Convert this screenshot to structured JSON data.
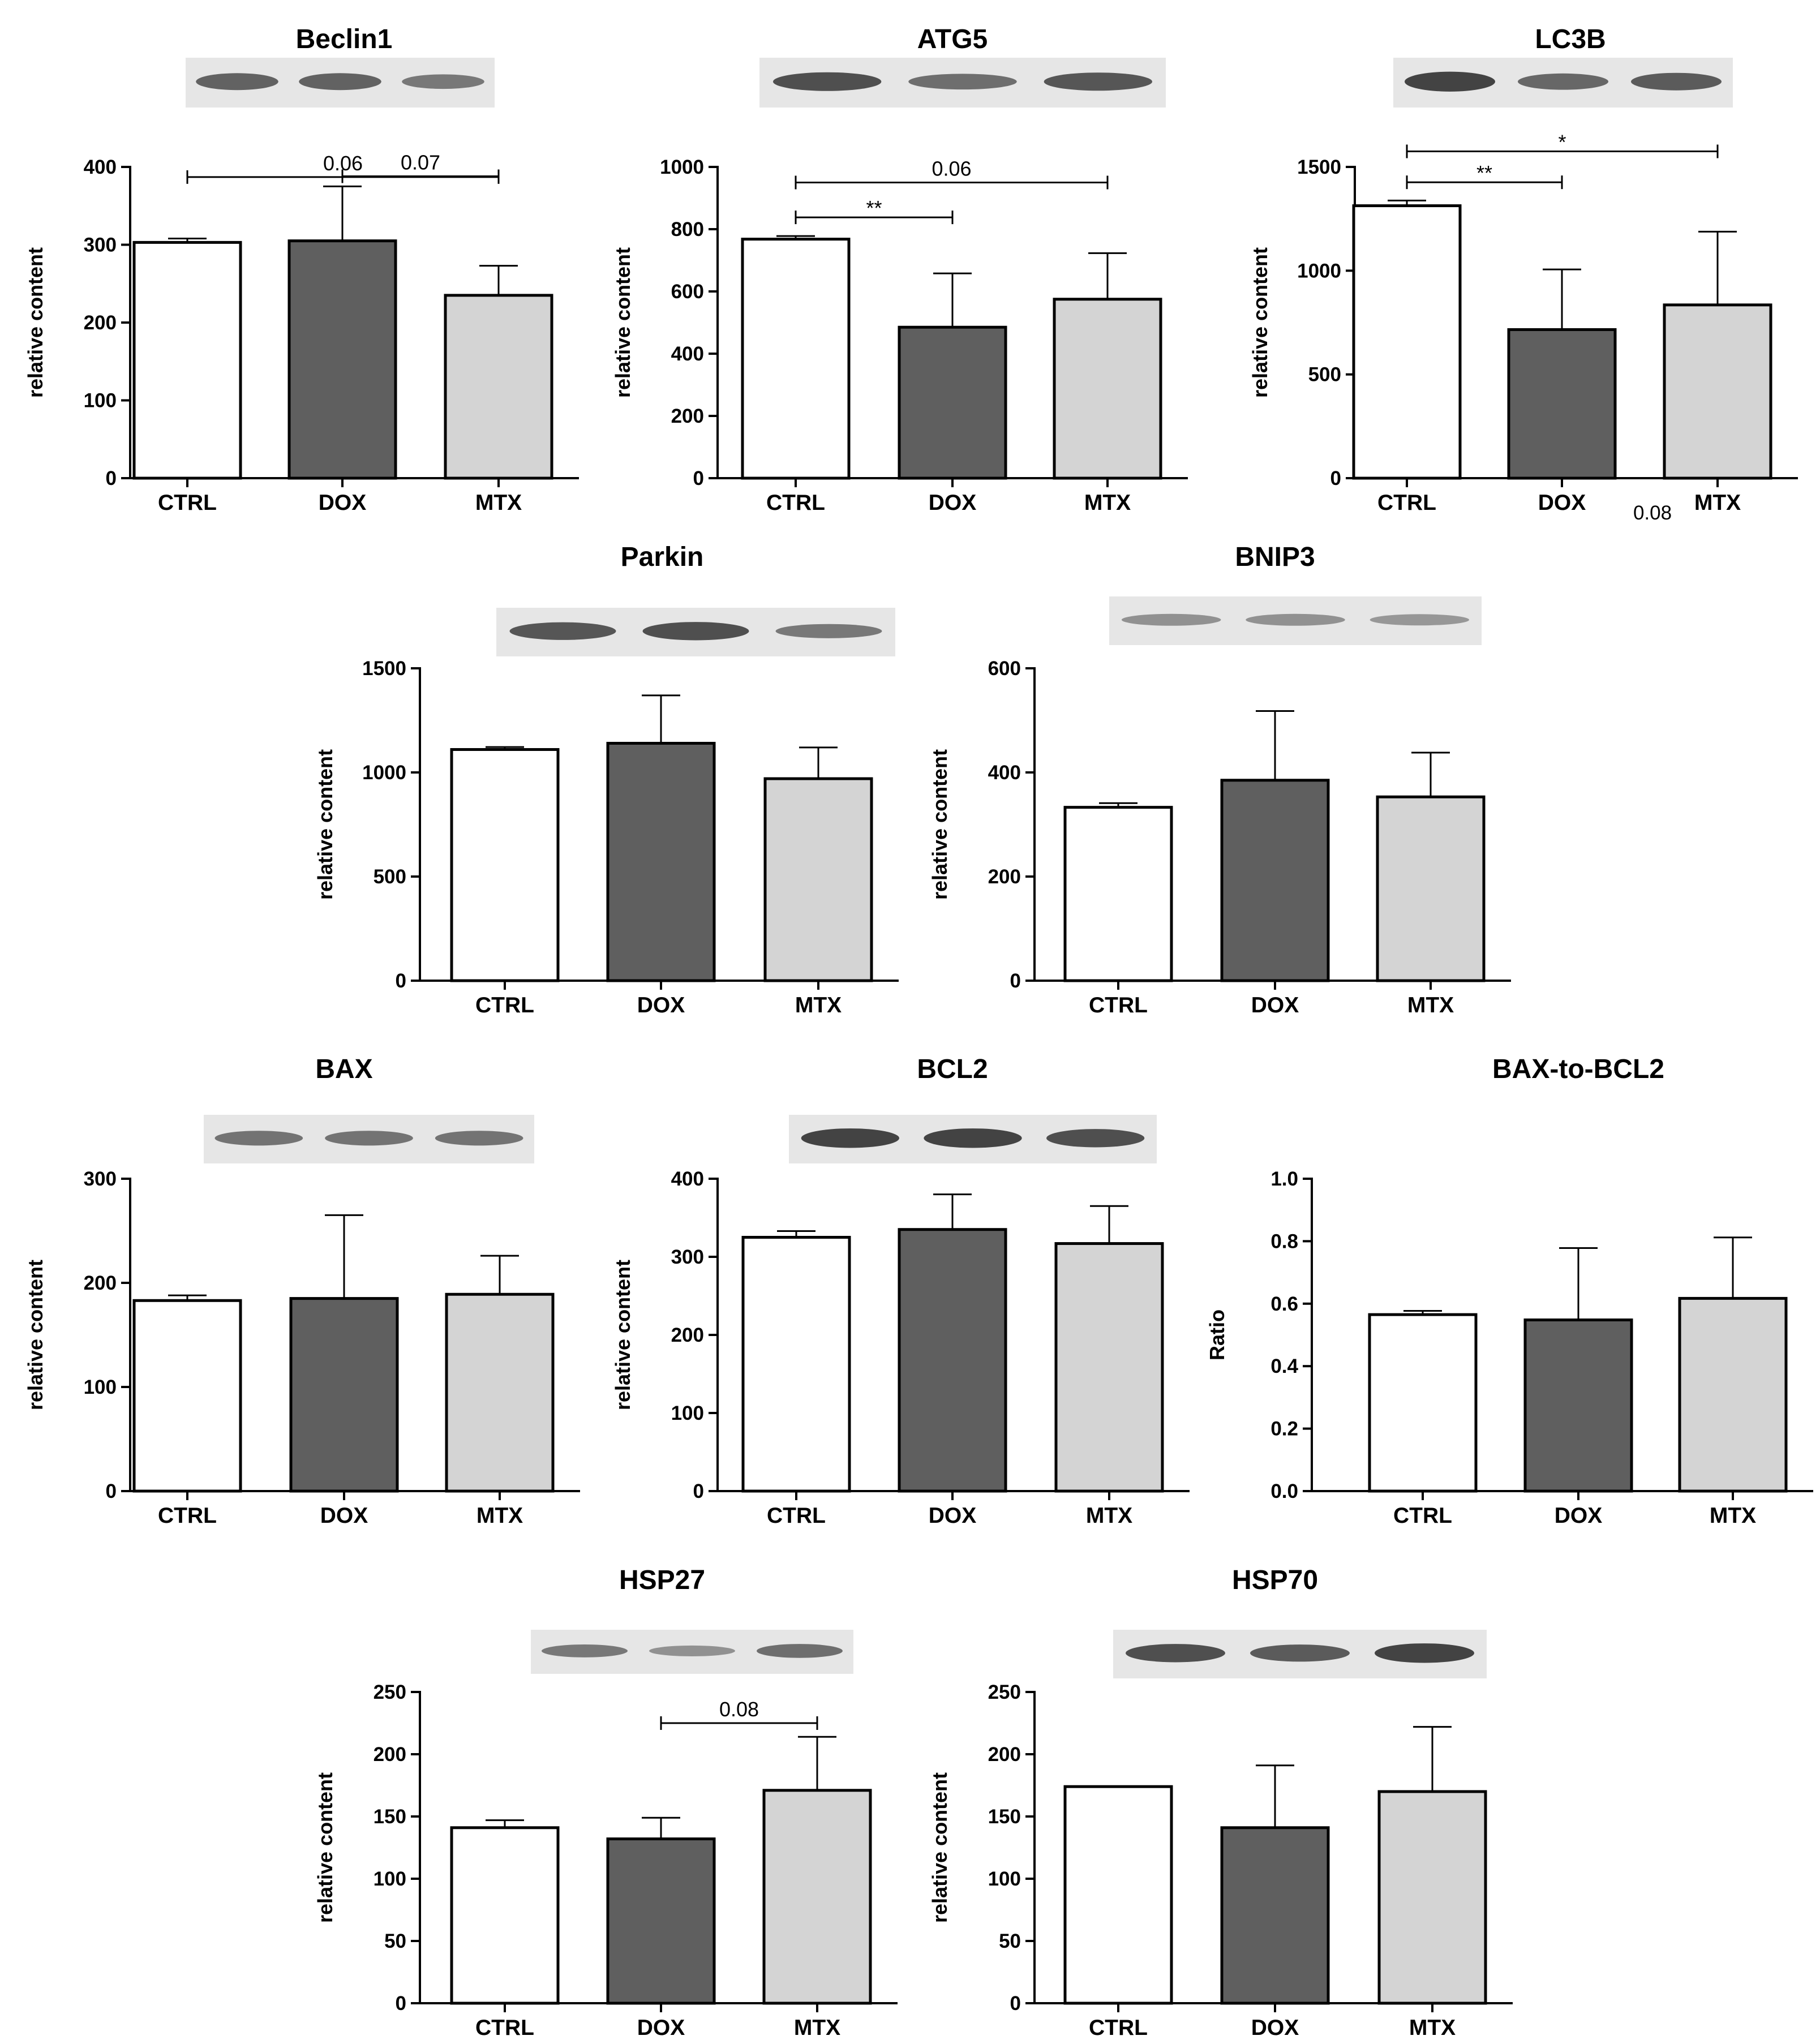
{
  "colors": {
    "CTRL": "#ffffff",
    "DOX": "#5f5f5f",
    "MTX": "#d4d4d4",
    "stroke": "#000000",
    "blot_bg": "#e6e6e6",
    "blot_band": "#3a3a3a"
  },
  "stray_label": "0.08",
  "chart_data": [
    {
      "id": "beclin1",
      "type": "bar",
      "title": "Beclin1",
      "ylabel": "relative content",
      "ylim": [
        0,
        400
      ],
      "yticks": [
        "0",
        "100",
        "200",
        "300",
        "400"
      ],
      "categories": [
        "CTRL",
        "DOX",
        "MTX"
      ],
      "values": [
        303,
        305,
        235
      ],
      "errors": [
        5,
        70,
        38
      ],
      "brackets": [
        {
          "from": "DOX",
          "to": "MTX",
          "label": "0.07",
          "value": 388
        },
        {
          "from": "CTRL",
          "to": "MTX",
          "label": "0.06",
          "value": 387
        }
      ],
      "blot": {
        "band_strength": [
          0.75,
          0.75,
          0.55
        ]
      }
    },
    {
      "id": "atg5",
      "type": "bar",
      "title": "ATG5",
      "ylabel": "relative content",
      "ylim": [
        0,
        1000
      ],
      "yticks": [
        "0",
        "200",
        "400",
        "600",
        "800",
        "1000"
      ],
      "categories": [
        "CTRL",
        "DOX",
        "MTX"
      ],
      "values": [
        768,
        485,
        575
      ],
      "errors": [
        10,
        173,
        148
      ],
      "brackets": [
        {
          "from": "CTRL",
          "to": "DOX",
          "label": "**",
          "value": 838
        },
        {
          "from": "CTRL",
          "to": "MTX",
          "label": "0.06",
          "value": 950
        }
      ],
      "blot": {
        "band_strength": [
          0.9,
          0.65,
          0.85
        ]
      }
    },
    {
      "id": "lc3b",
      "type": "bar",
      "title": "LC3B",
      "ylabel": "relative content",
      "ylim": [
        0,
        1500
      ],
      "yticks": [
        "0",
        "500",
        "1000",
        "1500"
      ],
      "categories": [
        "CTRL",
        "DOX",
        "MTX"
      ],
      "values": [
        1313,
        716,
        835
      ],
      "errors": [
        25,
        290,
        353
      ],
      "brackets": [
        {
          "from": "CTRL",
          "to": "DOX",
          "label": "**",
          "value": 1426
        },
        {
          "from": "CTRL",
          "to": "MTX",
          "label": "*",
          "value": 1575
        }
      ],
      "blot": {
        "band_strength": [
          1.0,
          0.7,
          0.8
        ]
      }
    },
    {
      "id": "parkin",
      "type": "bar",
      "title": "Parkin",
      "ylabel": "relative content",
      "ylim": [
        0,
        1500
      ],
      "yticks": [
        "0",
        "500",
        "1000",
        "1500"
      ],
      "categories": [
        "CTRL",
        "DOX",
        "MTX"
      ],
      "values": [
        1110,
        1140,
        970
      ],
      "errors": [
        12,
        230,
        150
      ],
      "brackets": [],
      "blot": {
        "band_strength": [
          0.85,
          0.9,
          0.55
        ]
      }
    },
    {
      "id": "bnip3",
      "type": "bar",
      "title": "BNIP3",
      "ylabel": "relative content",
      "ylim": [
        0,
        600
      ],
      "yticks": [
        "0",
        "200",
        "400",
        "600"
      ],
      "categories": [
        "CTRL",
        "DOX",
        "MTX"
      ],
      "values": [
        333,
        385,
        353
      ],
      "errors": [
        8,
        133,
        85
      ],
      "brackets": [],
      "blot": {
        "band_strength": [
          0.35,
          0.35,
          0.3
        ]
      }
    },
    {
      "id": "bax",
      "type": "bar",
      "title": "BAX",
      "ylabel": "relative content",
      "ylim": [
        0,
        300
      ],
      "yticks": [
        "0",
        "100",
        "200",
        "300"
      ],
      "categories": [
        "CTRL",
        "DOX",
        "MTX"
      ],
      "values": [
        183,
        185,
        189
      ],
      "errors": [
        5,
        80,
        37
      ],
      "brackets": [],
      "blot": {
        "band_strength": [
          0.6,
          0.6,
          0.6
        ]
      }
    },
    {
      "id": "bcl2",
      "type": "bar",
      "title": "BCL2",
      "ylabel": "relative content",
      "ylim": [
        0,
        400
      ],
      "yticks": [
        "0",
        "100",
        "200",
        "300",
        "400"
      ],
      "categories": [
        "CTRL",
        "DOX",
        "MTX"
      ],
      "values": [
        325,
        335,
        317
      ],
      "errors": [
        8,
        45,
        48
      ],
      "brackets": [],
      "blot": {
        "band_strength": [
          1.0,
          1.0,
          0.9
        ]
      }
    },
    {
      "id": "baxbcl2",
      "type": "bar",
      "title": "BAX-to-BCL2",
      "ylabel": "Ratio",
      "ylim": [
        0,
        1.0
      ],
      "yticks": [
        "0.0",
        "0.2",
        "0.4",
        "0.6",
        "0.8",
        "1.0"
      ],
      "categories": [
        "CTRL",
        "DOX",
        "MTX"
      ],
      "values": [
        0.565,
        0.548,
        0.617
      ],
      "errors": [
        0.012,
        0.23,
        0.195
      ],
      "brackets": []
    },
    {
      "id": "hsp27",
      "type": "bar",
      "title": "HSP27",
      "ylabel": "relative content",
      "ylim": [
        0,
        250
      ],
      "yticks": [
        "0",
        "50",
        "100",
        "150",
        "200",
        "250"
      ],
      "categories": [
        "CTRL",
        "DOX",
        "MTX"
      ],
      "values": [
        141,
        132,
        171
      ],
      "errors": [
        6,
        17,
        43
      ],
      "brackets": [
        {
          "from": "DOX",
          "to": "MTX",
          "label": "0.08",
          "value": 225
        }
      ],
      "blot": {
        "band_strength": [
          0.55,
          0.35,
          0.65
        ]
      }
    },
    {
      "id": "hsp70",
      "type": "bar",
      "title": "HSP70",
      "ylabel": "relative content",
      "ylim": [
        0,
        250
      ],
      "yticks": [
        "0",
        "50",
        "100",
        "150",
        "200",
        "250"
      ],
      "categories": [
        "CTRL",
        "DOX",
        "MTX"
      ],
      "values": [
        174,
        141,
        170
      ],
      "errors": [
        0,
        50,
        52
      ],
      "brackets": [],
      "blot": {
        "band_strength": [
          0.9,
          0.8,
          1.0
        ]
      }
    }
  ]
}
